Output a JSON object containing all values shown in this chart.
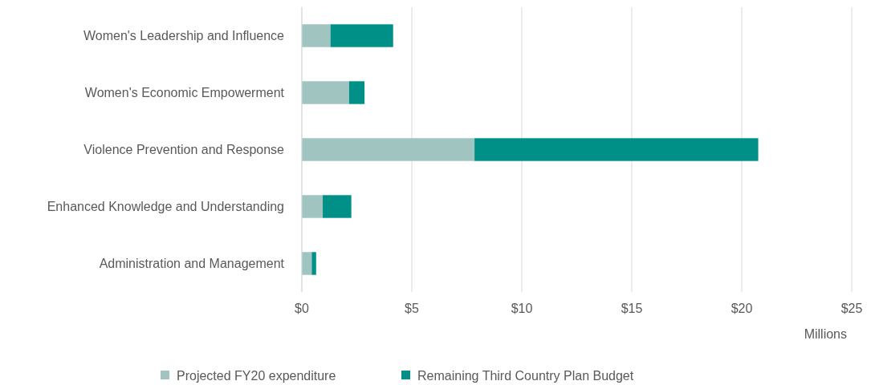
{
  "chart_data": {
    "type": "bar",
    "orientation": "horizontal",
    "stacked": true,
    "categories": [
      "Women's Leadership and Influence",
      "Women's Economic Empowerment",
      "Violence Prevention and Response",
      "Enhanced Knowledge and Understanding",
      "Administration and Management"
    ],
    "series": [
      {
        "name": "Projected FY20 expenditure",
        "color": "#a0c4c0",
        "values": [
          1.3,
          2.15,
          7.85,
          0.95,
          0.45
        ]
      },
      {
        "name": "Remaining Third Country Plan Budget",
        "color": "#009088",
        "values": [
          2.85,
          0.7,
          12.9,
          1.3,
          0.2
        ]
      }
    ],
    "xlim": [
      0,
      25
    ],
    "xticks": [
      {
        "value": 0,
        "label": "$0"
      },
      {
        "value": 5,
        "label": "$5"
      },
      {
        "value": 10,
        "label": "$10"
      },
      {
        "value": 15,
        "label": "$15"
      },
      {
        "value": 20,
        "label": "$20"
      },
      {
        "value": 25,
        "label": "$25"
      }
    ],
    "xlabel": "Millions",
    "grid": "x",
    "legend": "bottom"
  }
}
